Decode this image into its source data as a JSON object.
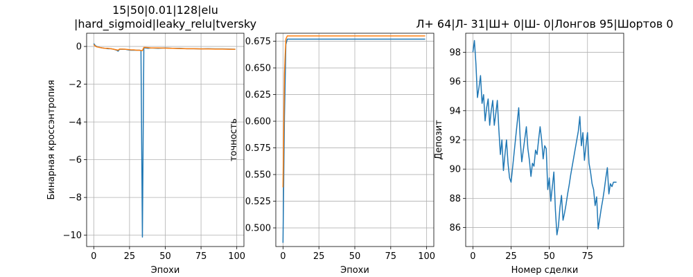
{
  "chart_data": [
    {
      "type": "line",
      "title": [
        "15|50|0.01|128|elu",
        "|hard_sigmoid|leaky_relu|tversky"
      ],
      "xlabel": "Эпохи",
      "ylabel": "Бинарная кроссэнтропия",
      "xlim": [
        -5,
        105
      ],
      "ylim": [
        -10.6,
        0.7
      ],
      "xticks": [
        0,
        25,
        50,
        75,
        100
      ],
      "yticks": [
        0,
        -2,
        -4,
        -6,
        -8,
        -10
      ],
      "ytick_labels": [
        "0",
        "−2",
        "−4",
        "−6",
        "−8",
        "−10"
      ],
      "grid": true,
      "series": [
        {
          "color": "#1f77b4",
          "x": [
            0,
            1,
            2,
            4,
            6,
            8,
            10,
            12,
            14,
            16,
            17,
            18,
            20,
            22,
            24,
            26,
            28,
            30,
            32,
            33,
            34,
            35,
            36,
            38,
            40,
            45,
            50,
            55,
            60,
            65,
            70,
            75,
            80,
            85,
            90,
            95,
            99
          ],
          "y": [
            0.15,
            0.05,
            0.0,
            -0.05,
            -0.08,
            -0.1,
            -0.12,
            -0.12,
            -0.15,
            -0.2,
            -0.25,
            -0.15,
            -0.15,
            -0.15,
            -0.18,
            -0.2,
            -0.2,
            -0.2,
            -0.2,
            -0.22,
            -10.1,
            -0.08,
            -0.08,
            -0.1,
            -0.08,
            -0.1,
            -0.08,
            -0.1,
            -0.1,
            -0.12,
            -0.12,
            -0.13,
            -0.12,
            -0.13,
            -0.13,
            -0.14,
            -0.15
          ]
        },
        {
          "color": "#ff7f0e",
          "x": [
            0,
            1,
            2,
            4,
            6,
            8,
            10,
            12,
            14,
            16,
            17,
            18,
            20,
            22,
            24,
            26,
            28,
            30,
            32,
            34,
            35,
            36,
            38,
            40,
            45,
            50,
            55,
            60,
            65,
            70,
            75,
            80,
            85,
            90,
            95,
            99
          ],
          "y": [
            0.1,
            0.02,
            -0.02,
            -0.05,
            -0.08,
            -0.1,
            -0.1,
            -0.12,
            -0.15,
            -0.18,
            -0.2,
            -0.14,
            -0.14,
            -0.15,
            -0.16,
            -0.18,
            -0.18,
            -0.2,
            -0.2,
            -0.22,
            -0.05,
            -0.05,
            -0.06,
            -0.08,
            -0.08,
            -0.09,
            -0.1,
            -0.11,
            -0.12,
            -0.12,
            -0.13,
            -0.13,
            -0.14,
            -0.14,
            -0.15,
            -0.15
          ]
        }
      ]
    },
    {
      "type": "line",
      "title": [],
      "xlabel": "Эпохи",
      "ylabel": "точность",
      "xlim": [
        -5,
        105
      ],
      "ylim": [
        0.4825,
        0.6825
      ],
      "xticks": [
        0,
        25,
        50,
        75,
        100
      ],
      "yticks": [
        0.5,
        0.525,
        0.55,
        0.575,
        0.6,
        0.625,
        0.65,
        0.675
      ],
      "ytick_labels": [
        "0.500",
        "0.525",
        "0.550",
        "0.575",
        "0.600",
        "0.625",
        "0.650",
        "0.675"
      ],
      "grid": true,
      "series": [
        {
          "color": "#1f77b4",
          "x": [
            0,
            1,
            2,
            3,
            4,
            5,
            99
          ],
          "y": [
            0.486,
            0.604,
            0.672,
            0.677,
            0.677,
            0.677,
            0.677
          ]
        },
        {
          "color": "#ff7f0e",
          "x": [
            0,
            1,
            2,
            3,
            4,
            99
          ],
          "y": [
            0.538,
            0.645,
            0.677,
            0.68,
            0.68,
            0.68
          ]
        }
      ]
    },
    {
      "type": "line",
      "title": [
        "Л+ 64|Л- 31|Ш+ 0|Ш- 0|Лонгов 95|Шортов 0"
      ],
      "xlabel": "Номер сделки",
      "ylabel": "Депозит",
      "xlim": [
        -4.7,
        98.7
      ],
      "ylim": [
        84.7,
        99.3
      ],
      "xticks": [
        0,
        25,
        50,
        75
      ],
      "yticks": [
        86,
        88,
        90,
        92,
        94,
        96,
        98
      ],
      "ytick_labels": [
        "86",
        "88",
        "90",
        "92",
        "94",
        "96",
        "98"
      ],
      "grid": true,
      "series": [
        {
          "color": "#1f77b4",
          "x": [
            0,
            1,
            2,
            3,
            4,
            5,
            6,
            7,
            8,
            9,
            10,
            11,
            12,
            13,
            14,
            15,
            16,
            17,
            18,
            19,
            20,
            21,
            22,
            23,
            24,
            25,
            26,
            30,
            31,
            32,
            33,
            34,
            35,
            36,
            37,
            38,
            39,
            40,
            41,
            42,
            43,
            44,
            45,
            46,
            47,
            48,
            49,
            50,
            51,
            52,
            53,
            54,
            55,
            56,
            57,
            58,
            59,
            60,
            61,
            62,
            63,
            64,
            65,
            66,
            67,
            68,
            69,
            70,
            71,
            72,
            73,
            74,
            75,
            76,
            77,
            78,
            79,
            80,
            81,
            82,
            83,
            84,
            85,
            86,
            87,
            88,
            89,
            90,
            91,
            92,
            93,
            94
          ],
          "y": [
            98.0,
            98.8,
            97.2,
            94.9,
            95.6,
            96.4,
            94.5,
            95.1,
            93.3,
            94.2,
            94.8,
            93.0,
            94.0,
            94.7,
            93.0,
            93.8,
            94.7,
            92.7,
            91.0,
            92.0,
            89.9,
            91.0,
            92.0,
            90.4,
            89.4,
            89.1,
            90.1,
            94.2,
            92.0,
            90.5,
            91.3,
            92.1,
            92.9,
            91.4,
            90.6,
            89.5,
            90.4,
            90.2,
            91.3,
            91.0,
            92.0,
            92.9,
            92.0,
            90.7,
            91.6,
            91.4,
            88.6,
            89.4,
            87.8,
            88.8,
            89.8,
            87.2,
            85.5,
            86.1,
            87.4,
            88.2,
            86.5,
            87.0,
            87.6,
            88.3,
            88.9,
            89.6,
            90.2,
            90.8,
            91.4,
            92.0,
            92.6,
            93.6,
            91.6,
            92.5,
            90.6,
            91.6,
            92.5,
            90.4,
            89.8,
            89.0,
            88.6,
            87.5,
            88.1,
            85.9,
            86.6,
            87.3,
            87.9,
            88.6,
            89.4,
            90.1,
            88.3,
            89.0,
            88.8,
            89.1,
            89.1,
            89.1
          ]
        }
      ]
    }
  ]
}
